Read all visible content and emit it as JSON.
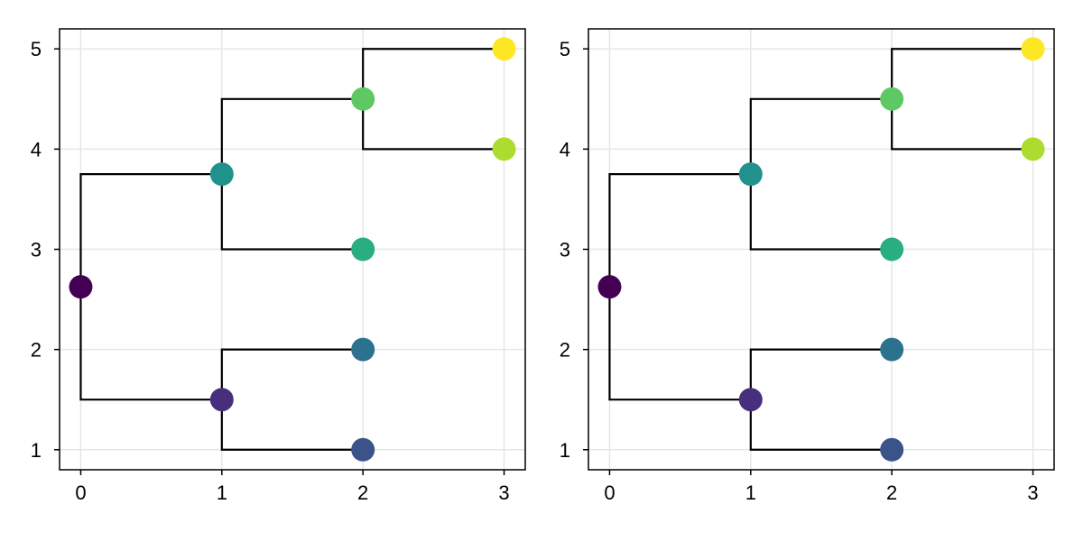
{
  "chart_data": [
    {
      "type": "scatter",
      "title": "",
      "xlabel": "",
      "ylabel": "",
      "xlim": [
        -0.15,
        3.15
      ],
      "ylim": [
        0.8,
        5.2
      ],
      "xticks": [
        "0",
        "1",
        "2",
        "3"
      ],
      "yticks": [
        "1",
        "2",
        "3",
        "4",
        "5"
      ],
      "grid": true,
      "legend": "none",
      "points": [
        {
          "x": 0,
          "y": 2.625,
          "color": "#440154"
        },
        {
          "x": 1,
          "y": 1.5,
          "color": "#472f7d"
        },
        {
          "x": 2,
          "y": 1,
          "color": "#3b528b"
        },
        {
          "x": 2,
          "y": 2,
          "color": "#2c728e"
        },
        {
          "x": 1,
          "y": 3.75,
          "color": "#21918c"
        },
        {
          "x": 2,
          "y": 3,
          "color": "#28ae80"
        },
        {
          "x": 2,
          "y": 4.5,
          "color": "#5ec962"
        },
        {
          "x": 3,
          "y": 4,
          "color": "#addc30"
        },
        {
          "x": 3,
          "y": 5,
          "color": "#fde725"
        }
      ],
      "links": [
        {
          "from": [
            0,
            2.625
          ],
          "to": [
            1,
            1.5
          ]
        },
        {
          "from": [
            0,
            2.625
          ],
          "to": [
            1,
            3.75
          ]
        },
        {
          "from": [
            1,
            1.5
          ],
          "to": [
            2,
            1
          ]
        },
        {
          "from": [
            1,
            1.5
          ],
          "to": [
            2,
            2
          ]
        },
        {
          "from": [
            1,
            3.75
          ],
          "to": [
            2,
            3
          ]
        },
        {
          "from": [
            1,
            3.75
          ],
          "to": [
            2,
            4.5
          ]
        },
        {
          "from": [
            2,
            4.5
          ],
          "to": [
            3,
            4
          ]
        },
        {
          "from": [
            2,
            4.5
          ],
          "to": [
            3,
            5
          ]
        }
      ]
    },
    {
      "type": "scatter",
      "title": "",
      "xlabel": "",
      "ylabel": "",
      "xlim": [
        -0.15,
        3.15
      ],
      "ylim": [
        0.8,
        5.2
      ],
      "xticks": [
        "0",
        "1",
        "2",
        "3"
      ],
      "yticks": [
        "1",
        "2",
        "3",
        "4",
        "5"
      ],
      "grid": true,
      "legend": "none",
      "points": [
        {
          "x": 0,
          "y": 2.625,
          "color": "#440154"
        },
        {
          "x": 1,
          "y": 1.5,
          "color": "#472f7d"
        },
        {
          "x": 2,
          "y": 1,
          "color": "#3b528b"
        },
        {
          "x": 2,
          "y": 2,
          "color": "#2c728e"
        },
        {
          "x": 1,
          "y": 3.75,
          "color": "#21918c"
        },
        {
          "x": 2,
          "y": 3,
          "color": "#28ae80"
        },
        {
          "x": 2,
          "y": 4.5,
          "color": "#5ec962"
        },
        {
          "x": 3,
          "y": 4,
          "color": "#addc30"
        },
        {
          "x": 3,
          "y": 5,
          "color": "#fde725"
        }
      ],
      "links": [
        {
          "from": [
            0,
            2.625
          ],
          "to": [
            1,
            1.5
          ]
        },
        {
          "from": [
            0,
            2.625
          ],
          "to": [
            1,
            3.75
          ]
        },
        {
          "from": [
            1,
            1.5
          ],
          "to": [
            2,
            1
          ]
        },
        {
          "from": [
            1,
            1.5
          ],
          "to": [
            2,
            2
          ]
        },
        {
          "from": [
            1,
            3.75
          ],
          "to": [
            2,
            3
          ]
        },
        {
          "from": [
            1,
            3.75
          ],
          "to": [
            2,
            4.5
          ]
        },
        {
          "from": [
            2,
            4.5
          ],
          "to": [
            3,
            4
          ]
        },
        {
          "from": [
            2,
            4.5
          ],
          "to": [
            3,
            5
          ]
        }
      ]
    }
  ]
}
